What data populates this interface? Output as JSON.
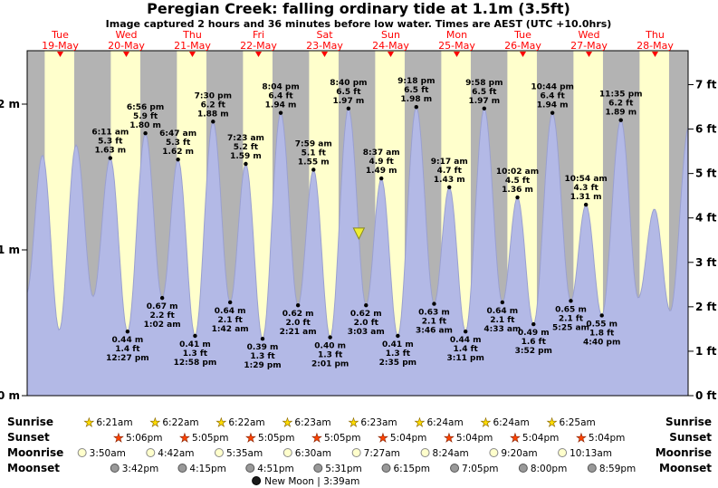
{
  "chart_data": {
    "type": "area",
    "title": "Peregian Creek: falling  ordinary tide at 1.1m (3.5ft)",
    "subtitle": "Image captured 2 hours and 36 minutes before low water. Times are AEST (UTC +10.0hrs)",
    "y_axis_left": {
      "unit": "m",
      "ticks": [
        {
          "label": "0 m",
          "value": 0
        },
        {
          "label": "1 m",
          "value": 1
        },
        {
          "label": "2 m",
          "value": 2
        }
      ]
    },
    "y_axis_right": {
      "unit": "ft",
      "ticks": [
        "0 ft",
        "1 ft",
        "2 ft",
        "3 ft",
        "4 ft",
        "5 ft",
        "6 ft",
        "7 ft"
      ]
    },
    "x_axis": {
      "domain_days": 10,
      "days": [
        {
          "dow": "Tue",
          "date": "19-May"
        },
        {
          "dow": "Wed",
          "date": "20-May"
        },
        {
          "dow": "Thu",
          "date": "21-May"
        },
        {
          "dow": "Fri",
          "date": "22-May"
        },
        {
          "dow": "Sat",
          "date": "23-May"
        },
        {
          "dow": "Sun",
          "date": "24-May"
        },
        {
          "dow": "Mon",
          "date": "25-May"
        },
        {
          "dow": "Tue",
          "date": "26-May"
        },
        {
          "dow": "Wed",
          "date": "27-May"
        },
        {
          "dow": "Thu",
          "date": "28-May"
        }
      ]
    },
    "daylight": {
      "sunrise_hour": 6.37,
      "sunset_hour": 17.08
    },
    "marker": {
      "t": 5.0188,
      "height_m": 1.1,
      "note": "falling tide at 1.1m"
    },
    "extremes": [
      {
        "t": -0.0104,
        "m": 0.7,
        "type": "low",
        "annotated": false
      },
      {
        "t": 0.2326,
        "m": 1.65,
        "type": "high",
        "annotated": false
      },
      {
        "t": 0.4861,
        "m": 0.45,
        "type": "low",
        "annotated": false
      },
      {
        "t": 0.7396,
        "m": 1.72,
        "type": "high",
        "annotated": false
      },
      {
        "t": 0.9972,
        "m": 0.68,
        "type": "low",
        "annotated": false
      },
      {
        "t": 1.2576,
        "m": 1.63,
        "type": "high",
        "annotated": true,
        "time_label": "6:11 am",
        "ft_label": "5.3 ft",
        "m_label": "1.63 m"
      },
      {
        "t": 1.5188,
        "m": 0.44,
        "type": "low",
        "annotated": true,
        "time_label": "12:27 pm",
        "ft_label": "1.4 ft",
        "m_label": "0.44 m"
      },
      {
        "t": 1.7889,
        "m": 1.8,
        "type": "high",
        "annotated": true,
        "time_label": "6:56 pm",
        "ft_label": "5.9 ft",
        "m_label": "1.80 m"
      },
      {
        "t": 2.0431,
        "m": 0.67,
        "type": "low",
        "annotated": true,
        "time_label": "1:02 am",
        "ft_label": "2.2 ft",
        "m_label": "0.67 m"
      },
      {
        "t": 2.2826,
        "m": 1.62,
        "type": "high",
        "annotated": true,
        "time_label": "6:47 am",
        "ft_label": "5.3 ft",
        "m_label": "1.62 m"
      },
      {
        "t": 2.5403,
        "m": 0.41,
        "type": "low",
        "annotated": true,
        "time_label": "12:58 pm",
        "ft_label": "1.3 ft",
        "m_label": "0.41 m"
      },
      {
        "t": 2.8125,
        "m": 1.88,
        "type": "high",
        "annotated": true,
        "time_label": "7:30 pm",
        "ft_label": "6.2 ft",
        "m_label": "1.88 m"
      },
      {
        "t": 3.0708,
        "m": 0.64,
        "type": "low",
        "annotated": true,
        "time_label": "1:42 am",
        "ft_label": "2.1 ft",
        "m_label": "0.64 m"
      },
      {
        "t": 3.3076,
        "m": 1.59,
        "type": "high",
        "annotated": true,
        "time_label": "7:23 am",
        "ft_label": "5.2 ft",
        "m_label": "1.59 m"
      },
      {
        "t": 3.5618,
        "m": 0.39,
        "type": "low",
        "annotated": true,
        "time_label": "1:29 pm",
        "ft_label": "1.3 ft",
        "m_label": "0.39 m"
      },
      {
        "t": 3.8361,
        "m": 1.94,
        "type": "high",
        "annotated": true,
        "time_label": "8:04 pm",
        "ft_label": "6.4 ft",
        "m_label": "1.94 m"
      },
      {
        "t": 4.0979,
        "m": 0.62,
        "type": "low",
        "annotated": true,
        "time_label": "2:21 am",
        "ft_label": "2.0 ft",
        "m_label": "0.62 m"
      },
      {
        "t": 4.3326,
        "m": 1.55,
        "type": "high",
        "annotated": true,
        "time_label": "7:59 am",
        "ft_label": "5.1 ft",
        "m_label": "1.55 m"
      },
      {
        "t": 4.584,
        "m": 0.4,
        "type": "low",
        "annotated": true,
        "time_label": "2:01 pm",
        "ft_label": "1.3 ft",
        "m_label": "0.40 m"
      },
      {
        "t": 4.8611,
        "m": 1.97,
        "type": "high",
        "annotated": true,
        "time_label": "8:40 pm",
        "ft_label": "6.5 ft",
        "m_label": "1.97 m"
      },
      {
        "t": 5.1271,
        "m": 0.62,
        "type": "low",
        "annotated": true,
        "time_label": "3:03 am",
        "ft_label": "2.0 ft",
        "m_label": "0.62 m"
      },
      {
        "t": 5.359,
        "m": 1.49,
        "type": "high",
        "annotated": true,
        "time_label": "8:37 am",
        "ft_label": "4.9 ft",
        "m_label": "1.49 m"
      },
      {
        "t": 5.6076,
        "m": 0.41,
        "type": "low",
        "annotated": true,
        "time_label": "2:35 pm",
        "ft_label": "1.3 ft",
        "m_label": "0.41 m"
      },
      {
        "t": 5.8875,
        "m": 1.98,
        "type": "high",
        "annotated": true,
        "time_label": "9:18 pm",
        "ft_label": "6.5 ft",
        "m_label": "1.98 m"
      },
      {
        "t": 6.1569,
        "m": 0.63,
        "type": "low",
        "annotated": true,
        "time_label": "3:46 am",
        "ft_label": "2.1 ft",
        "m_label": "0.63 m"
      },
      {
        "t": 6.3868,
        "m": 1.43,
        "type": "high",
        "annotated": true,
        "time_label": "9:17 am",
        "ft_label": "4.7 ft",
        "m_label": "1.43 m"
      },
      {
        "t": 6.6326,
        "m": 0.44,
        "type": "low",
        "annotated": true,
        "time_label": "3:11 pm",
        "ft_label": "1.4 ft",
        "m_label": "0.44 m"
      },
      {
        "t": 6.9153,
        "m": 1.97,
        "type": "high",
        "annotated": true,
        "time_label": "9:58 pm",
        "ft_label": "6.5 ft",
        "m_label": "1.97 m"
      },
      {
        "t": 7.1896,
        "m": 0.64,
        "type": "low",
        "annotated": true,
        "time_label": "4:33 am",
        "ft_label": "2.1 ft",
        "m_label": "0.64 m"
      },
      {
        "t": 7.4181,
        "m": 1.36,
        "type": "high",
        "annotated": true,
        "time_label": "10:02 am",
        "ft_label": "4.5 ft",
        "m_label": "1.36 m"
      },
      {
        "t": 7.6611,
        "m": 0.49,
        "type": "low",
        "annotated": true,
        "time_label": "3:52 pm",
        "ft_label": "1.6 ft",
        "m_label": "0.49 m"
      },
      {
        "t": 7.9472,
        "m": 1.94,
        "type": "high",
        "annotated": true,
        "time_label": "10:44 pm",
        "ft_label": "6.4 ft",
        "m_label": "1.94 m"
      },
      {
        "t": 8.2257,
        "m": 0.65,
        "type": "low",
        "annotated": true,
        "time_label": "5:25 am",
        "ft_label": "2.1 ft",
        "m_label": "0.65 m"
      },
      {
        "t": 8.4542,
        "m": 1.31,
        "type": "high",
        "annotated": true,
        "time_label": "10:54 am",
        "ft_label": "4.3 ft",
        "m_label": "1.31 m"
      },
      {
        "t": 8.6944,
        "m": 0.55,
        "type": "low",
        "annotated": true,
        "time_label": "4:40 pm",
        "ft_label": "1.8 ft",
        "m_label": "0.55 m"
      },
      {
        "t": 8.9826,
        "m": 1.89,
        "type": "high",
        "annotated": true,
        "time_label": "11:35 pm",
        "ft_label": "6.2 ft",
        "m_label": "1.89 m"
      },
      {
        "t": 9.2465,
        "m": 0.67,
        "type": "low",
        "annotated": false
      },
      {
        "t": 9.4896,
        "m": 1.28,
        "type": "high",
        "annotated": false
      },
      {
        "t": 9.7292,
        "m": 0.58,
        "type": "low",
        "annotated": false
      },
      {
        "t": 10.0139,
        "m": 1.85,
        "type": "high",
        "annotated": false
      }
    ]
  },
  "astro": {
    "rows": [
      {
        "name": "sunrise",
        "label": "Sunrise",
        "icon": "star-sunrise",
        "entries": [
          {
            "time": "6:21am",
            "t": 1.2646
          },
          {
            "time": "6:22am",
            "t": 2.2653
          },
          {
            "time": "6:22am",
            "t": 3.2653
          },
          {
            "time": "6:23am",
            "t": 4.266
          },
          {
            "time": "6:23am",
            "t": 5.266
          },
          {
            "time": "6:24am",
            "t": 6.2667
          },
          {
            "time": "6:24am",
            "t": 7.2667
          },
          {
            "time": "6:25am",
            "t": 8.2674
          }
        ]
      },
      {
        "name": "sunset",
        "label": "Sunset",
        "icon": "star-sunset",
        "entries": [
          {
            "time": "5:06pm",
            "t": 1.7125
          },
          {
            "time": "5:05pm",
            "t": 2.7118
          },
          {
            "time": "5:05pm",
            "t": 3.7118
          },
          {
            "time": "5:05pm",
            "t": 4.7118
          },
          {
            "time": "5:04pm",
            "t": 5.7111
          },
          {
            "time": "5:04pm",
            "t": 6.7111
          },
          {
            "time": "5:04pm",
            "t": 7.7111
          },
          {
            "time": "5:04pm",
            "t": 8.7111
          }
        ]
      },
      {
        "name": "moonrise",
        "label": "Moonrise",
        "icon": "circle-moonrise",
        "entries": [
          {
            "time": "3:50am",
            "t": 1.1597
          },
          {
            "time": "4:42am",
            "t": 2.1958
          },
          {
            "time": "5:35am",
            "t": 3.2326
          },
          {
            "time": "6:30am",
            "t": 4.2708
          },
          {
            "time": "7:27am",
            "t": 5.3104
          },
          {
            "time": "8:24am",
            "t": 6.35
          },
          {
            "time": "9:20am",
            "t": 7.3889
          },
          {
            "time": "10:13am",
            "t": 8.4257
          }
        ]
      },
      {
        "name": "moonset",
        "label": "Moonset",
        "icon": "circle-moonset",
        "entries": [
          {
            "time": "3:42pm",
            "t": 1.6542
          },
          {
            "time": "4:15pm",
            "t": 2.6771
          },
          {
            "time": "4:51pm",
            "t": 3.7021
          },
          {
            "time": "5:31pm",
            "t": 4.7299
          },
          {
            "time": "6:15pm",
            "t": 5.7604
          },
          {
            "time": "7:05pm",
            "t": 6.7951
          },
          {
            "time": "8:00pm",
            "t": 7.8333
          },
          {
            "time": "8:59pm",
            "t": 8.8743
          }
        ]
      }
    ],
    "new_moon": {
      "label": "New Moon | 3:39am",
      "t": 4.1521
    }
  },
  "colors": {
    "day_band": "#ffffcc",
    "night_band": "#b3b3b3",
    "tide_fill": "#b3b9e6",
    "tide_stroke": "#9aa0d0",
    "day_label": "#ff0000",
    "marker_fill": "#eeee33",
    "marker_stroke": "#888822",
    "sunrise_star": "#ffdd00",
    "sunset_star": "#ff4400",
    "moonrise_fill": "#ffffcc",
    "moonset_fill": "#999999",
    "new_moon_fill": "#1a1a1a"
  }
}
